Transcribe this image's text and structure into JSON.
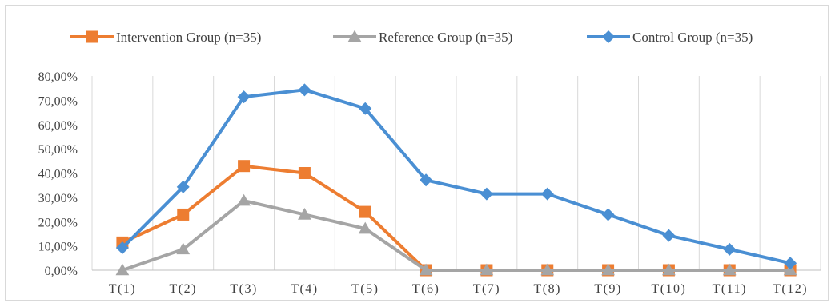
{
  "chart_data": {
    "type": "line",
    "categories": [
      "T(1)",
      "T(2)",
      "T(3)",
      "T(4)",
      "T(5)",
      "T(6)",
      "T(7)",
      "T(8)",
      "T(9)",
      "T(10)",
      "T(11)",
      "T(12)"
    ],
    "y_ticks": [
      "0,00%",
      "10,00%",
      "20,00%",
      "30,00%",
      "40,00%",
      "50,00%",
      "60,00%",
      "70,00%",
      "80,00%"
    ],
    "ylim": [
      0,
      80
    ],
    "grid": "vertical",
    "legend_position": "top",
    "series": [
      {
        "name": "Intervention Group (n=35)",
        "color": "#ED7D31",
        "marker": "square",
        "values": [
          11.4,
          22.9,
          42.9,
          40.0,
          24.0,
          0,
          0,
          0,
          0,
          0,
          0,
          0
        ]
      },
      {
        "name": "Reference Group (n=35)",
        "color": "#A5A5A5",
        "marker": "triangle",
        "values": [
          0,
          8.6,
          28.6,
          22.9,
          17.1,
          0,
          0,
          0,
          0,
          0,
          0,
          0
        ]
      },
      {
        "name": "Control Group (n=35)",
        "color": "#4A8FD3",
        "marker": "diamond",
        "values": [
          9.2,
          34.3,
          71.4,
          74.3,
          66.6,
          37.1,
          31.4,
          31.4,
          22.9,
          14.3,
          8.6,
          2.9
        ]
      }
    ]
  }
}
